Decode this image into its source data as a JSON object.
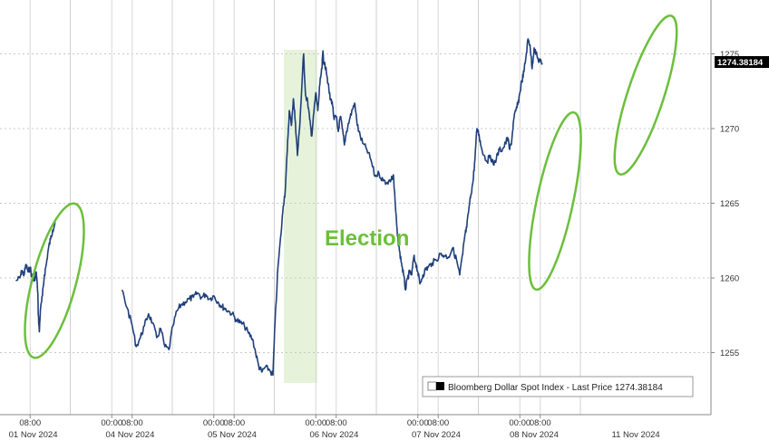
{
  "chart_data": {
    "type": "line",
    "series": [
      {
        "name": "Bloomberg Dollar Spot Index - Last Price",
        "points": [
          [
            -0.04,
            1259.8
          ],
          [
            0.0,
            1260.0
          ],
          [
            0.02,
            1260.5
          ],
          [
            0.04,
            1260.2
          ],
          [
            0.06,
            1260.9
          ],
          [
            0.08,
            1260.4
          ],
          [
            0.1,
            1260.7
          ],
          [
            0.12,
            1260.0
          ],
          [
            0.14,
            1259.8
          ],
          [
            0.16,
            1260.4
          ],
          [
            0.175,
            1259.0
          ],
          [
            0.18,
            1257.5
          ],
          [
            0.19,
            1256.4
          ],
          [
            0.2,
            1257.8
          ],
          [
            0.22,
            1258.8
          ],
          [
            0.24,
            1260.2
          ],
          [
            0.26,
            1261.0
          ],
          [
            0.28,
            1262.0
          ],
          [
            0.3,
            1262.6
          ],
          [
            0.32,
            1263.2
          ],
          [
            0.34,
            1263.6
          ],
          [
            0.35,
            1263.8
          ],
          [
            1.0,
            1259.2
          ],
          [
            1.05,
            1258.0
          ],
          [
            1.1,
            1256.8
          ],
          [
            1.14,
            1255.4
          ],
          [
            1.18,
            1256.0
          ],
          [
            1.22,
            1256.8
          ],
          [
            1.26,
            1257.6
          ],
          [
            1.3,
            1257.0
          ],
          [
            1.34,
            1256.0
          ],
          [
            1.38,
            1256.6
          ],
          [
            1.42,
            1255.4
          ],
          [
            1.46,
            1255.2
          ],
          [
            1.5,
            1256.8
          ],
          [
            1.54,
            1257.8
          ],
          [
            1.58,
            1258.2
          ],
          [
            1.62,
            1258.4
          ],
          [
            1.66,
            1258.6
          ],
          [
            1.7,
            1258.7
          ],
          [
            1.74,
            1259.0
          ],
          [
            1.78,
            1258.7
          ],
          [
            1.82,
            1258.9
          ],
          [
            1.86,
            1258.6
          ],
          [
            1.9,
            1258.8
          ],
          [
            1.94,
            1258.4
          ],
          [
            1.98,
            1258.1
          ],
          [
            2.0,
            1258.0
          ],
          [
            2.04,
            1257.8
          ],
          [
            2.08,
            1257.6
          ],
          [
            2.12,
            1257.2
          ],
          [
            2.16,
            1257.0
          ],
          [
            2.2,
            1256.8
          ],
          [
            2.24,
            1256.3
          ],
          [
            2.28,
            1255.9
          ],
          [
            2.31,
            1255.0
          ],
          [
            2.34,
            1254.1
          ],
          [
            2.37,
            1253.7
          ],
          [
            2.4,
            1254.0
          ],
          [
            2.44,
            1253.9
          ],
          [
            2.48,
            1253.5
          ],
          [
            2.5,
            1257.0
          ],
          [
            2.53,
            1260.8
          ],
          [
            2.56,
            1263.0
          ],
          [
            2.58,
            1264.8
          ],
          [
            2.6,
            1265.8
          ],
          [
            2.62,
            1268.5
          ],
          [
            2.64,
            1271.2
          ],
          [
            2.66,
            1270.2
          ],
          [
            2.68,
            1272.0
          ],
          [
            2.7,
            1270.4
          ],
          [
            2.72,
            1268.2
          ],
          [
            2.74,
            1270.0
          ],
          [
            2.76,
            1272.4
          ],
          [
            2.78,
            1275.0
          ],
          [
            2.8,
            1272.2
          ],
          [
            2.82,
            1271.8
          ],
          [
            2.84,
            1270.6
          ],
          [
            2.86,
            1269.5
          ],
          [
            2.88,
            1271.0
          ],
          [
            2.9,
            1272.4
          ],
          [
            2.92,
            1271.2
          ],
          [
            2.94,
            1273.0
          ],
          [
            2.96,
            1274.0
          ],
          [
            2.97,
            1275.2
          ],
          [
            2.98,
            1274.3
          ],
          [
            3.0,
            1274.1
          ],
          [
            3.02,
            1273.0
          ],
          [
            3.04,
            1272.0
          ],
          [
            3.06,
            1271.8
          ],
          [
            3.08,
            1270.6
          ],
          [
            3.1,
            1270.8
          ],
          [
            3.12,
            1269.8
          ],
          [
            3.14,
            1270.8
          ],
          [
            3.16,
            1270.0
          ],
          [
            3.18,
            1268.9
          ],
          [
            3.2,
            1269.8
          ],
          [
            3.23,
            1270.6
          ],
          [
            3.26,
            1271.3
          ],
          [
            3.28,
            1271.7
          ],
          [
            3.3,
            1270.6
          ],
          [
            3.32,
            1269.8
          ],
          [
            3.36,
            1269.0
          ],
          [
            3.4,
            1268.6
          ],
          [
            3.44,
            1267.9
          ],
          [
            3.48,
            1266.8
          ],
          [
            3.52,
            1267.0
          ],
          [
            3.56,
            1266.5
          ],
          [
            3.6,
            1266.4
          ],
          [
            3.64,
            1266.6
          ],
          [
            3.66,
            1266.9
          ],
          [
            3.68,
            1264.8
          ],
          [
            3.7,
            1262.8
          ],
          [
            3.72,
            1261.8
          ],
          [
            3.74,
            1261.0
          ],
          [
            3.76,
            1260.2
          ],
          [
            3.78,
            1259.2
          ],
          [
            3.8,
            1260.0
          ],
          [
            3.82,
            1260.4
          ],
          [
            3.84,
            1260.2
          ],
          [
            3.86,
            1261.4
          ],
          [
            3.88,
            1261.0
          ],
          [
            3.9,
            1260.4
          ],
          [
            3.92,
            1259.6
          ],
          [
            3.95,
            1260.2
          ],
          [
            3.98,
            1260.6
          ],
          [
            4.0,
            1260.7
          ],
          [
            4.04,
            1261.0
          ],
          [
            4.08,
            1261.2
          ],
          [
            4.12,
            1261.6
          ],
          [
            4.16,
            1261.5
          ],
          [
            4.2,
            1261.4
          ],
          [
            4.24,
            1262.0
          ],
          [
            4.28,
            1261.2
          ],
          [
            4.31,
            1260.2
          ],
          [
            4.34,
            1261.6
          ],
          [
            4.36,
            1262.8
          ],
          [
            4.38,
            1263.4
          ],
          [
            4.4,
            1264.6
          ],
          [
            4.42,
            1265.6
          ],
          [
            4.44,
            1266.4
          ],
          [
            4.46,
            1268.0
          ],
          [
            4.48,
            1270.0
          ],
          [
            4.5,
            1269.6
          ],
          [
            4.52,
            1268.8
          ],
          [
            4.55,
            1268.2
          ],
          [
            4.58,
            1267.8
          ],
          [
            4.61,
            1268.2
          ],
          [
            4.64,
            1267.6
          ],
          [
            4.67,
            1268.0
          ],
          [
            4.7,
            1268.6
          ],
          [
            4.73,
            1268.6
          ],
          [
            4.76,
            1269.0
          ],
          [
            4.78,
            1269.4
          ],
          [
            4.8,
            1268.6
          ],
          [
            4.82,
            1269.2
          ],
          [
            4.84,
            1270.6
          ],
          [
            4.86,
            1271.2
          ],
          [
            4.88,
            1271.6
          ],
          [
            4.9,
            1272.4
          ],
          [
            4.92,
            1273.2
          ],
          [
            4.94,
            1273.8
          ],
          [
            4.96,
            1274.8
          ],
          [
            4.98,
            1276.0
          ],
          [
            5.0,
            1275.6
          ],
          [
            5.02,
            1274.0
          ],
          [
            5.04,
            1275.4
          ],
          [
            5.06,
            1275.0
          ],
          [
            5.08,
            1274.6
          ],
          [
            5.1,
            1274.5
          ],
          [
            5.12,
            1274.38
          ]
        ]
      }
    ],
    "y_ticks": [
      "1255",
      "1260",
      "1265",
      "1270",
      "1275"
    ],
    "ylim": [
      1251,
      1279
    ],
    "x_ticks": [
      {
        "x": 0.1,
        "label": "08:00"
      },
      {
        "x": 0.9,
        "label": "00:00"
      },
      {
        "x": 1.1,
        "label": "08:00"
      },
      {
        "x": 1.9,
        "label": "00:00"
      },
      {
        "x": 2.1,
        "label": "08:00"
      },
      {
        "x": 2.9,
        "label": "00:00"
      },
      {
        "x": 3.1,
        "label": "08:00"
      },
      {
        "x": 3.9,
        "label": "00:00"
      },
      {
        "x": 4.1,
        "label": "08:00"
      },
      {
        "x": 4.9,
        "label": "00:00"
      },
      {
        "x": 5.1,
        "label": "08:00"
      }
    ],
    "date_labels": [
      {
        "x": 0.05,
        "label": "01 Nov 2024"
      },
      {
        "x": 1.0,
        "label": "04 Nov 2024"
      },
      {
        "x": 2.0,
        "label": "05 Nov 2024"
      },
      {
        "x": 3.0,
        "label": "06 Nov 2024"
      },
      {
        "x": 4.0,
        "label": "07 Nov 2024"
      },
      {
        "x": 4.96,
        "label": "08 Nov 2024"
      },
      {
        "x": 5.96,
        "label": "11 Nov 2024"
      }
    ],
    "last_price": "1274.38184",
    "legend": "Bloomberg Dollar Spot Index - Last Price 1274.38184",
    "annotation": "Election",
    "grid": true,
    "colors": {
      "line": "#1f3f7a",
      "highlight": "#6cbf3c",
      "shade": "#e6f3da",
      "price_tag_bg": "#000000",
      "grid": "#c8c8c8"
    }
  }
}
